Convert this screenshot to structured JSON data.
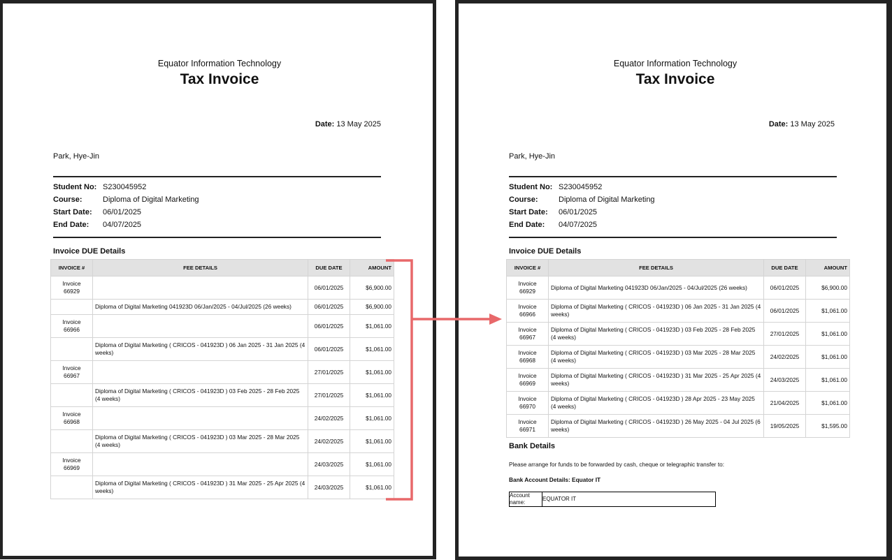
{
  "colors": {
    "annotation": "#e8686a",
    "page_border": "#232323",
    "table_header_bg": "#e2e2e2"
  },
  "left": {
    "company": "Equator Information Technology",
    "title": "Tax Invoice",
    "date_label": "Date:",
    "date_value": "13 May 2025",
    "student_name": "Park, Hye-Jin",
    "info": [
      {
        "label": "Student No:",
        "value": "S230045952"
      },
      {
        "label": "Course:",
        "value": "Diploma of Digital Marketing"
      },
      {
        "label": "Start Date:",
        "value": "06/01/2025"
      },
      {
        "label": "End Date:",
        "value": "04/07/2025"
      }
    ],
    "section": "Invoice DUE Details",
    "columns": [
      "INVOICE #",
      "FEE DETAILS",
      "DUE DATE",
      "AMOUNT"
    ],
    "rows": [
      {
        "invoice": "Invoice 66929",
        "details": "",
        "due": "06/01/2025",
        "amount": "$6,900.00"
      },
      {
        "invoice": "",
        "details": "Diploma of Digital Marketing 041923D 06/Jan/2025 - 04/Jul/2025 (26 weeks)",
        "due": "06/01/2025",
        "amount": "$6,900.00"
      },
      {
        "invoice": "Invoice 66966",
        "details": "",
        "due": "06/01/2025",
        "amount": "$1,061.00"
      },
      {
        "invoice": "",
        "details": "Diploma of Digital Marketing ( CRICOS - 041923D ) 06 Jan 2025 - 31 Jan 2025 (4 weeks)",
        "due": "06/01/2025",
        "amount": "$1,061.00"
      },
      {
        "invoice": "Invoice 66967",
        "details": "",
        "due": "27/01/2025",
        "amount": "$1,061.00"
      },
      {
        "invoice": "",
        "details": "Diploma of Digital Marketing ( CRICOS - 041923D ) 03 Feb 2025 - 28 Feb 2025 (4 weeks)",
        "due": "27/01/2025",
        "amount": "$1,061.00"
      },
      {
        "invoice": "Invoice 66968",
        "details": "",
        "due": "24/02/2025",
        "amount": "$1,061.00"
      },
      {
        "invoice": "",
        "details": "Diploma of Digital Marketing ( CRICOS - 041923D ) 03 Mar 2025 - 28 Mar 2025 (4 weeks)",
        "due": "24/02/2025",
        "amount": "$1,061.00"
      },
      {
        "invoice": "Invoice 66969",
        "details": "",
        "due": "24/03/2025",
        "amount": "$1,061.00"
      },
      {
        "invoice": "",
        "details": "Diploma of Digital Marketing ( CRICOS - 041923D ) 31 Mar 2025 - 25 Apr 2025 (4 weeks)",
        "due": "24/03/2025",
        "amount": "$1,061.00"
      }
    ]
  },
  "right": {
    "company": "Equator Information Technology",
    "title": "Tax Invoice",
    "date_label": "Date:",
    "date_value": "13 May 2025",
    "student_name": "Park, Hye-Jin",
    "info": [
      {
        "label": "Student No:",
        "value": "S230045952"
      },
      {
        "label": "Course:",
        "value": "Diploma of Digital Marketing"
      },
      {
        "label": "Start Date:",
        "value": "06/01/2025"
      },
      {
        "label": "End Date:",
        "value": "04/07/2025"
      }
    ],
    "section": "Invoice DUE Details",
    "columns": [
      "INVOICE #",
      "FEE DETAILS",
      "DUE DATE",
      "AMOUNT"
    ],
    "rows": [
      {
        "invoice": "Invoice 66929",
        "details": "Diploma of Digital Marketing 041923D 06/Jan/2025 - 04/Jul/2025 (26 weeks)",
        "due": "06/01/2025",
        "amount": "$6,900.00"
      },
      {
        "invoice": "Invoice 66966",
        "details": "Diploma of Digital Marketing ( CRICOS - 041923D ) 06 Jan 2025 - 31 Jan 2025 (4 weeks)",
        "due": "06/01/2025",
        "amount": "$1,061.00"
      },
      {
        "invoice": "Invoice 66967",
        "details": "Diploma of Digital Marketing ( CRICOS - 041923D ) 03 Feb 2025 - 28 Feb 2025 (4 weeks)",
        "due": "27/01/2025",
        "amount": "$1,061.00"
      },
      {
        "invoice": "Invoice 66968",
        "details": "Diploma of Digital Marketing ( CRICOS - 041923D ) 03 Mar 2025 - 28 Mar 2025 (4 weeks)",
        "due": "24/02/2025",
        "amount": "$1,061.00"
      },
      {
        "invoice": "Invoice 66969",
        "details": "Diploma of Digital Marketing ( CRICOS - 041923D ) 31 Mar 2025 - 25 Apr 2025 (4 weeks)",
        "due": "24/03/2025",
        "amount": "$1,061.00"
      },
      {
        "invoice": "Invoice 66970",
        "details": "Diploma of Digital Marketing ( CRICOS - 041923D ) 28 Apr 2025 - 23 May 2025 (4 weeks)",
        "due": "21/04/2025",
        "amount": "$1,061.00"
      },
      {
        "invoice": "Invoice 66971",
        "details": "Diploma of Digital Marketing ( CRICOS - 041923D ) 26 May 2025 - 04 Jul 2025 (6 weeks)",
        "due": "19/05/2025",
        "amount": "$1,595.00"
      }
    ],
    "bank": {
      "heading": "Bank Details",
      "instruction": "Please arrange for funds to be forwarded by cash, cheque or telegraphic transfer to:",
      "subheading": "Bank Account Details: Equator IT",
      "account_label": "Account name:",
      "account_value": "EQUATOR IT"
    }
  }
}
